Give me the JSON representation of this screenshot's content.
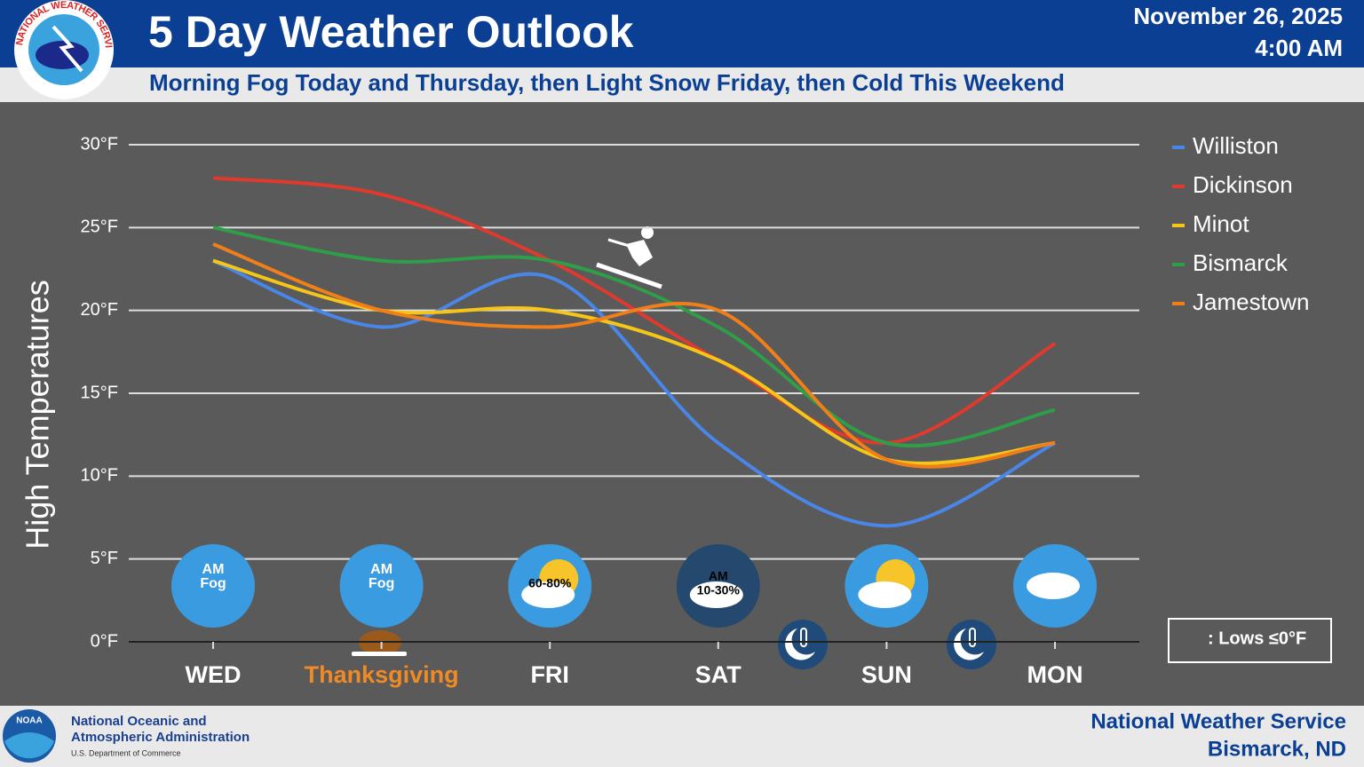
{
  "header": {
    "title": "5 Day Weather Outlook",
    "subtitle": "Morning Fog Today and Thursday, then Light Snow Friday, then Cold This Weekend",
    "date": "November 26, 2025",
    "time": "4:00 AM",
    "logo_text": "NATIONAL WEATHER SERVICE"
  },
  "chart_data": {
    "type": "line",
    "ylabel": "High Temperatures",
    "categories": [
      "WED",
      "Thanksgiving",
      "FRI",
      "SAT",
      "SUN",
      "MON"
    ],
    "ylim": [
      0,
      30
    ],
    "yticks": [
      {
        "value": 0,
        "label": "0°F"
      },
      {
        "value": 5,
        "label": "5°F"
      },
      {
        "value": 10,
        "label": "10°F"
      },
      {
        "value": 15,
        "label": "15°F"
      },
      {
        "value": 20,
        "label": "20°F"
      },
      {
        "value": 25,
        "label": "25°F"
      },
      {
        "value": 30,
        "label": "30°F"
      }
    ],
    "grid": true,
    "legend": "right",
    "series": [
      {
        "name": "Williston",
        "color": "#4a86e8",
        "values": [
          23,
          19,
          22,
          12,
          7,
          12
        ]
      },
      {
        "name": "Dickinson",
        "color": "#e0392e",
        "values": [
          28,
          27,
          23,
          17,
          12,
          18
        ]
      },
      {
        "name": "Minot",
        "color": "#f5c518",
        "values": [
          23,
          20,
          20,
          17,
          11,
          12
        ]
      },
      {
        "name": "Bismarck",
        "color": "#2e9e48",
        "values": [
          25,
          23,
          23,
          19,
          12,
          14
        ]
      },
      {
        "name": "Jamestown",
        "color": "#f07f1a",
        "values": [
          24,
          20,
          19,
          20,
          11,
          12
        ]
      }
    ],
    "icon_labels": [
      [
        "AM",
        "Fog"
      ],
      [
        "AM",
        "Fog"
      ],
      [
        "60-80%"
      ],
      [
        "AM",
        "10-30%"
      ],
      [],
      []
    ],
    "lows_legend": ": Lows ≤0°F"
  },
  "footer": {
    "noaa": "NOAA",
    "agency_line1": "National Oceanic and",
    "agency_line2": "Atmospheric Administration",
    "department": "U.S. Department of Commerce",
    "office": "National Weather Service",
    "location": "Bismarck, ND"
  }
}
